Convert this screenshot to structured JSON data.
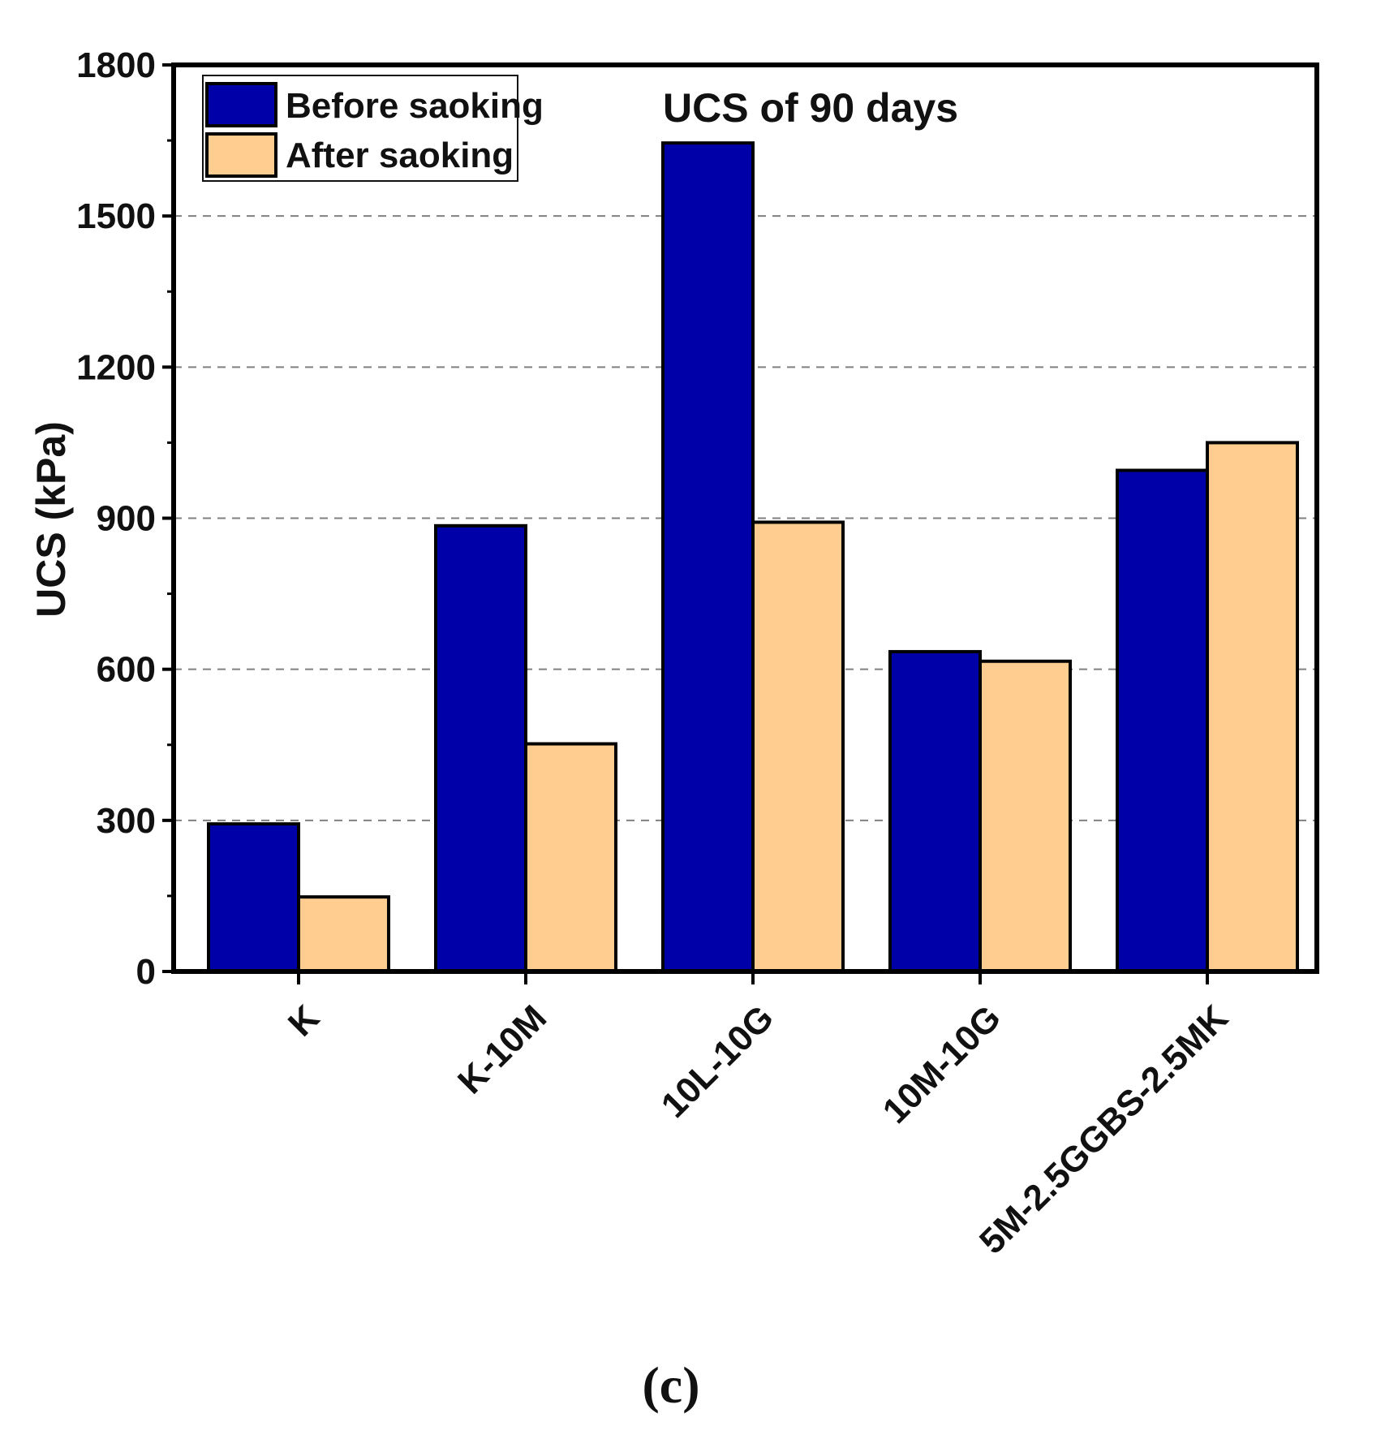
{
  "chart_data": {
    "type": "bar",
    "title": "UCS of 90 days",
    "xlabel": "",
    "ylabel": "UCS (kPa)",
    "ylim": [
      0,
      1800
    ],
    "yticks": [
      "0",
      "300",
      "600",
      "900",
      "1200",
      "1500",
      "1800"
    ],
    "grid": "horizontal-dashed",
    "legend_position": "top-left",
    "categories": [
      "K",
      "K-10M",
      "10L-10G",
      "10M-10G",
      "5M-2.5GGBS-2.5MK"
    ],
    "series": [
      {
        "name": "Before saoking",
        "color": "#0000A8",
        "values": [
          293,
          885,
          1645,
          635,
          995
        ]
      },
      {
        "name": "After saoking",
        "color": "#FECD8F",
        "values": [
          148,
          452,
          892,
          616,
          1050
        ]
      }
    ]
  },
  "panel_label": "(c)"
}
